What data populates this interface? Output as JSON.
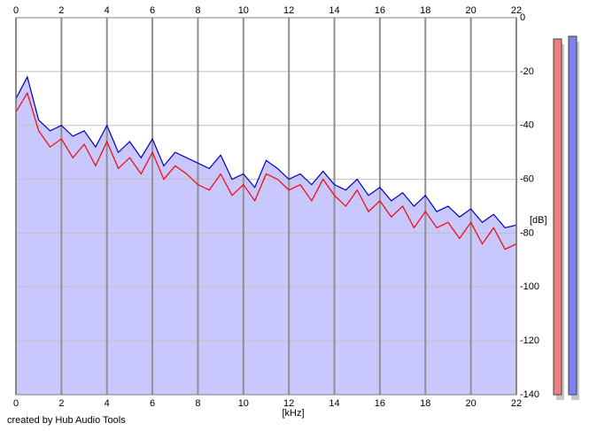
{
  "chart_data": {
    "type": "line",
    "x_label": "[kHz]",
    "y_label": "[dB]",
    "footer": "created by Hub Audio Tools",
    "xlim": [
      0,
      22
    ],
    "xticks": [
      0,
      2,
      4,
      6,
      8,
      10,
      12,
      14,
      16,
      18,
      20,
      22
    ],
    "ylim": [
      -140,
      0
    ],
    "yticks": [
      0,
      -20,
      -40,
      -60,
      -80,
      -100,
      -120,
      -140
    ],
    "grid": true,
    "fill_color": "#c8c8ff",
    "x": [
      0,
      0.5,
      1,
      1.5,
      2,
      2.5,
      3,
      3.5,
      4,
      4.5,
      5,
      5.5,
      6,
      6.5,
      7,
      7.5,
      8,
      8.5,
      9,
      9.5,
      10,
      10.5,
      11,
      11.5,
      12,
      12.5,
      13,
      13.5,
      14,
      14.5,
      15,
      15.5,
      16,
      16.5,
      17,
      17.5,
      18,
      18.5,
      19,
      19.5,
      20,
      20.5,
      21,
      21.5,
      22
    ],
    "series": [
      {
        "color": "#ff0000",
        "values": [
          -35,
          -28,
          -42,
          -48,
          -45,
          -52,
          -47,
          -55,
          -46,
          -56,
          -52,
          -58,
          -50,
          -60,
          -55,
          -58,
          -62,
          -64,
          -58,
          -66,
          -62,
          -68,
          -58,
          -60,
          -64,
          -62,
          -68,
          -60,
          -66,
          -70,
          -64,
          -72,
          -68,
          -74,
          -70,
          -78,
          -72,
          -78,
          -76,
          -82,
          -76,
          -84,
          -78,
          -86,
          -84
        ]
      },
      {
        "color": "#0000c0",
        "values": [
          -30,
          -22,
          -38,
          -42,
          -40,
          -44,
          -42,
          -48,
          -40,
          -50,
          -46,
          -52,
          -45,
          -55,
          -50,
          -52,
          -54,
          -56,
          -51,
          -60,
          -58,
          -63,
          -53,
          -56,
          -60,
          -58,
          -62,
          -57,
          -62,
          -64,
          -60,
          -66,
          -63,
          -68,
          -65,
          -70,
          -66,
          -72,
          -70,
          -74,
          -71,
          -76,
          -73,
          -78,
          -77
        ]
      }
    ],
    "meters": [
      {
        "color": "#f08080",
        "value": -7.9
      },
      {
        "color": "#8080f0",
        "value": -6.9
      }
    ]
  }
}
